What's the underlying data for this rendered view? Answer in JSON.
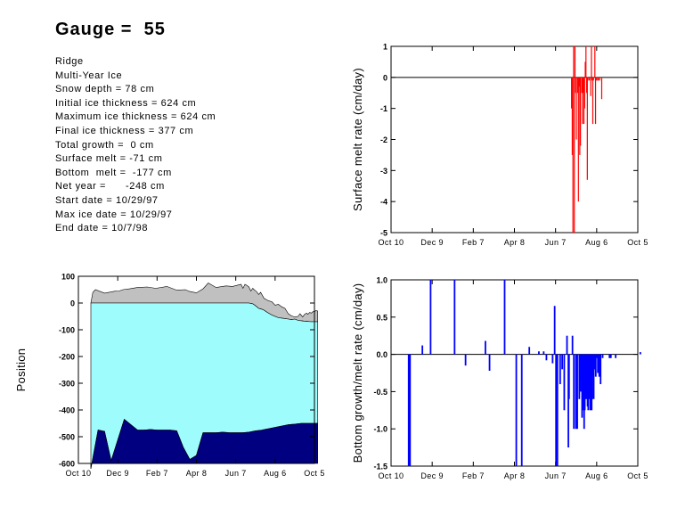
{
  "header": {
    "title": "Gauge =  55",
    "info_lines": [
      "Ridge",
      "Multi-Year Ice",
      "Snow depth = 78 cm",
      "Initial ice thickness = 624 cm",
      "Maximum ice thickness = 624 cm",
      "Final ice thickness = 377 cm",
      "Total growth =  0 cm",
      "Surface melt = -71 cm",
      "Bottom  melt =  -177 cm",
      "Net year =      -248 cm",
      "Start date = 10/29/97",
      "Max ice date = 10/29/97",
      "End date = 10/7/98"
    ]
  },
  "chart_data": [
    {
      "type": "bar",
      "name": "surface-melt",
      "ylabel": "Surface melt rate (cm/day)",
      "xlabel": "",
      "x_tick_labels": [
        "Oct 10",
        "Dec 9",
        "Feb 7",
        "Apr 8",
        "Jun 7",
        "Aug 6",
        "Oct 5"
      ],
      "x_tick_days": [
        0,
        60,
        120,
        180,
        240,
        300,
        360
      ],
      "ylim": [
        -5,
        1
      ],
      "y_ticks": [
        1,
        0,
        -1,
        -2,
        -3,
        -4,
        -5
      ],
      "color": "#ff0000",
      "x": [
        263,
        264,
        265,
        266,
        267,
        268,
        269,
        270,
        271,
        272,
        273,
        274,
        275,
        276,
        277,
        278,
        279,
        280,
        281,
        282,
        283,
        284,
        285,
        286,
        287,
        288,
        289,
        291,
        292,
        293,
        294,
        295,
        297,
        298,
        299,
        301,
        302,
        303,
        304,
        307
      ],
      "values": [
        -1.0,
        -2.5,
        -5.0,
        1.0,
        -5.0,
        1.0,
        -0.5,
        -2.0,
        0.0,
        -0.5,
        -4.0,
        -0.3,
        -2.5,
        -2.2,
        0.0,
        -0.5,
        -1.5,
        -0.5,
        -1.5,
        -1.0,
        0.5,
        1.0,
        -0.5,
        -3.3,
        -0.1,
        0.0,
        -0.1,
        -0.6,
        1.0,
        -0.1,
        -1.5,
        -0.1,
        1.0,
        -1.5,
        -0.1,
        -0.1,
        -0.1,
        0.0,
        -0.1,
        -0.7
      ]
    },
    {
      "type": "area",
      "name": "position",
      "ylabel": "Position",
      "xlabel": "",
      "x_tick_labels": [
        "Oct 10",
        "Dec 9",
        "Feb 7",
        "Apr 8",
        "Jun 7",
        "Aug 6",
        "Oct 5"
      ],
      "x_tick_days": [
        0,
        60,
        120,
        180,
        240,
        300,
        360
      ],
      "ylim": [
        -600,
        100
      ],
      "y_ticks": [
        100,
        0,
        -100,
        -200,
        -300,
        -400,
        -500,
        -600
      ],
      "series": [
        {
          "role": "snow surface",
          "color": "#c0c0c0",
          "x": [
            19,
            22,
            26,
            40,
            55,
            62,
            68,
            78,
            90,
            105,
            118,
            135,
            150,
            163,
            170,
            180,
            190,
            198,
            210,
            225,
            235,
            245,
            248,
            251,
            254,
            257,
            260,
            263,
            266,
            268,
            272,
            275,
            278,
            283,
            290,
            295,
            300,
            305,
            310,
            315,
            320,
            325,
            330,
            335,
            338,
            342,
            345,
            348,
            350,
            353,
            355,
            358,
            360,
            362,
            365
          ],
          "values": [
            0,
            40,
            50,
            37,
            44,
            45,
            50,
            53,
            58,
            60,
            55,
            62,
            48,
            50,
            43,
            38,
            53,
            75,
            58,
            64,
            62,
            68,
            70,
            55,
            70,
            66,
            60,
            45,
            55,
            50,
            42,
            32,
            40,
            18,
            8,
            5,
            -8,
            -5,
            -14,
            -20,
            -40,
            -48,
            -52,
            -50,
            -40,
            -52,
            -42,
            -38,
            -42,
            -35,
            -38,
            -32,
            -33,
            -28,
            -30
          ]
        },
        {
          "role": "ice top",
          "color": "#9ffcfc",
          "x": [
            19,
            260,
            266,
            270,
            275,
            282,
            288,
            295,
            305,
            315,
            325,
            330,
            335,
            345,
            355,
            365
          ],
          "values": [
            0,
            0,
            -3,
            -10,
            -20,
            -25,
            -35,
            -45,
            -55,
            -58,
            -62,
            -60,
            -65,
            -68,
            -70,
            -70
          ]
        },
        {
          "role": "ice bottom",
          "color": "#000080",
          "x": [
            19,
            30,
            40,
            50,
            70,
            90,
            100,
            110,
            120,
            130,
            140,
            150,
            160,
            170,
            180,
            190,
            200,
            210,
            220,
            230,
            240,
            250,
            260,
            270,
            280,
            290,
            300,
            310,
            320,
            330,
            340,
            350,
            360,
            365
          ],
          "values": [
            -620,
            -475,
            -480,
            -590,
            -435,
            -475,
            -475,
            -473,
            -475,
            -475,
            -475,
            -478,
            -540,
            -585,
            -570,
            -485,
            -485,
            -485,
            -483,
            -485,
            -485,
            -485,
            -483,
            -478,
            -475,
            -470,
            -465,
            -460,
            -455,
            -453,
            -450,
            -450,
            -450,
            -450
          ]
        }
      ]
    },
    {
      "type": "bar",
      "name": "bottom-growth-melt",
      "ylabel": "Bottom growth/melt rate (cm/day)",
      "xlabel": "",
      "x_tick_labels": [
        "Oct 10",
        "Dec 9",
        "Feb 7",
        "Apr 8",
        "Jun 7",
        "Aug 6",
        "Oct 5"
      ],
      "x_tick_days": [
        0,
        60,
        120,
        180,
        240,
        300,
        360
      ],
      "ylim": [
        -1.5,
        1.0
      ],
      "y_ticks": [
        1.0,
        0.5,
        0.0,
        -0.5,
        -1.0,
        -1.5
      ],
      "color": "#0000ff",
      "x": [
        25,
        26,
        27,
        45,
        57,
        92,
        108,
        118,
        137,
        143,
        165,
        182,
        190,
        201,
        207,
        215,
        222,
        226,
        235,
        238,
        240,
        242,
        246,
        249,
        252,
        256,
        258,
        259,
        264,
        266,
        269,
        271,
        274,
        276,
        277,
        278,
        279,
        280,
        281,
        282,
        283,
        284,
        285,
        286,
        287,
        288,
        289,
        290,
        291,
        292,
        293,
        294,
        295,
        296,
        297,
        298,
        299,
        301,
        303,
        305,
        308,
        318,
        320,
        327,
        363
      ],
      "values": [
        -1.5,
        -1.5,
        -1.5,
        0.12,
        1.0,
        1.0,
        -0.15,
        0.0,
        0.18,
        -0.22,
        1.0,
        -1.5,
        -1.5,
        0.1,
        0.0,
        0.04,
        0.04,
        -0.08,
        -0.12,
        0.65,
        -1.5,
        -1.5,
        -0.4,
        -0.2,
        -0.75,
        0.25,
        -1.25,
        -0.6,
        0.25,
        -1.0,
        -1.0,
        -1.0,
        -0.6,
        -0.5,
        -0.35,
        -0.85,
        -0.75,
        -0.4,
        -1.0,
        -0.75,
        -0.6,
        -0.5,
        -0.6,
        -0.7,
        -0.75,
        -0.6,
        -0.55,
        -0.75,
        -0.25,
        -0.75,
        -0.6,
        -0.3,
        -0.6,
        -0.2,
        -0.2,
        -0.3,
        -0.05,
        -0.25,
        -0.3,
        -0.4,
        -0.05,
        -0.05,
        -0.05,
        -0.05,
        0.03
      ]
    }
  ]
}
